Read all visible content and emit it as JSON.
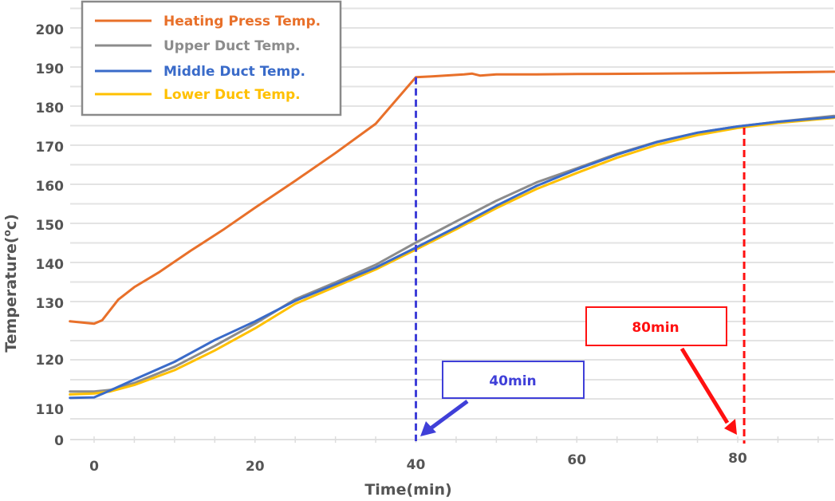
{
  "chart_data": {
    "type": "line",
    "title": "",
    "xlabel": "Time(min)",
    "ylabel": "Temperature(°c)",
    "ylabel_parts": {
      "prefix": "Temperature(",
      "sup": "o",
      "suffix": "c)"
    },
    "xlim": [
      -3,
      92
    ],
    "ylim": [
      0,
      205
    ],
    "y_axis_break": true,
    "grid": true,
    "legend_position": "top-left",
    "x_ticks": [
      {
        "value": 0,
        "label": "0"
      },
      {
        "value": 20,
        "label": "20"
      },
      {
        "value": 40,
        "label": "40"
      },
      {
        "value": 60,
        "label": "60"
      },
      {
        "value": 80,
        "label": "80"
      }
    ],
    "y_ticks": [
      {
        "value": 200,
        "label": "200"
      },
      {
        "value": 190,
        "label": "190"
      },
      {
        "value": 180,
        "label": "180"
      },
      {
        "value": 170,
        "label": "170"
      },
      {
        "value": 160,
        "label": "160"
      },
      {
        "value": 150,
        "label": "150"
      },
      {
        "value": 140,
        "label": "140"
      },
      {
        "value": 130,
        "label": "130"
      },
      {
        "value": 120,
        "label": "120"
      },
      {
        "value": 110,
        "label": "110"
      },
      {
        "value": 0,
        "label": "0"
      }
    ],
    "series": [
      {
        "name": "Heating Press Temp.",
        "color": "#E8702A",
        "x": [
          -3,
          0,
          1,
          3,
          5,
          8,
          12,
          16,
          20,
          25,
          30,
          35,
          40,
          42,
          46,
          47,
          48,
          50,
          55,
          60,
          70,
          80,
          92
        ],
        "y": [
          126.6,
          126.2,
          126.8,
          130.5,
          133.7,
          137.4,
          143.0,
          148.3,
          154.0,
          160.9,
          168.0,
          175.5,
          187.4,
          187.6,
          188.1,
          188.3,
          187.8,
          188.1,
          188.1,
          188.2,
          188.3,
          188.5,
          188.8
        ]
      },
      {
        "name": "Upper Duct Temp.",
        "color": "#8C8C8C",
        "x": [
          -3,
          0,
          2,
          5,
          10,
          15,
          20,
          25,
          30,
          35,
          40,
          45,
          50,
          55,
          60,
          65,
          70,
          75,
          80,
          85,
          92
        ],
        "y": [
          113.6,
          113.6,
          113.9,
          115.3,
          118.6,
          122.4,
          126.2,
          130.6,
          134.9,
          139.4,
          145.1,
          150.5,
          155.8,
          160.5,
          164.1,
          167.8,
          170.9,
          173.2,
          174.8,
          176.0,
          177.5
        ]
      },
      {
        "name": "Middle Duct Temp.",
        "color": "#3A6BC9",
        "x": [
          -3,
          0,
          2,
          5,
          10,
          15,
          20,
          25,
          30,
          35,
          40,
          45,
          50,
          55,
          60,
          65,
          70,
          75,
          80,
          85,
          92
        ],
        "y": [
          112.3,
          112.4,
          113.8,
          116.0,
          119.6,
          123.4,
          126.6,
          130.2,
          134.4,
          138.7,
          143.8,
          149.0,
          154.5,
          159.6,
          163.8,
          167.6,
          170.8,
          173.2,
          174.8,
          176.0,
          177.2
        ]
      },
      {
        "name": "Lower Duct Temp.",
        "color": "#FFC000",
        "x": [
          -3,
          0,
          2,
          5,
          10,
          15,
          20,
          25,
          30,
          35,
          40,
          45,
          50,
          55,
          60,
          65,
          70,
          75,
          80,
          85,
          92
        ],
        "y": [
          113.0,
          113.2,
          113.6,
          114.9,
          117.9,
          121.6,
          125.4,
          129.6,
          133.8,
          138.2,
          143.3,
          148.5,
          153.9,
          158.8,
          162.9,
          166.8,
          170.1,
          172.6,
          174.4,
          175.7,
          177.0
        ]
      }
    ],
    "annotations": [
      {
        "label": "40min",
        "x": 40,
        "color": "#3F3FD8"
      },
      {
        "label": "80min",
        "x": 81,
        "color": "#FF1010"
      }
    ]
  }
}
